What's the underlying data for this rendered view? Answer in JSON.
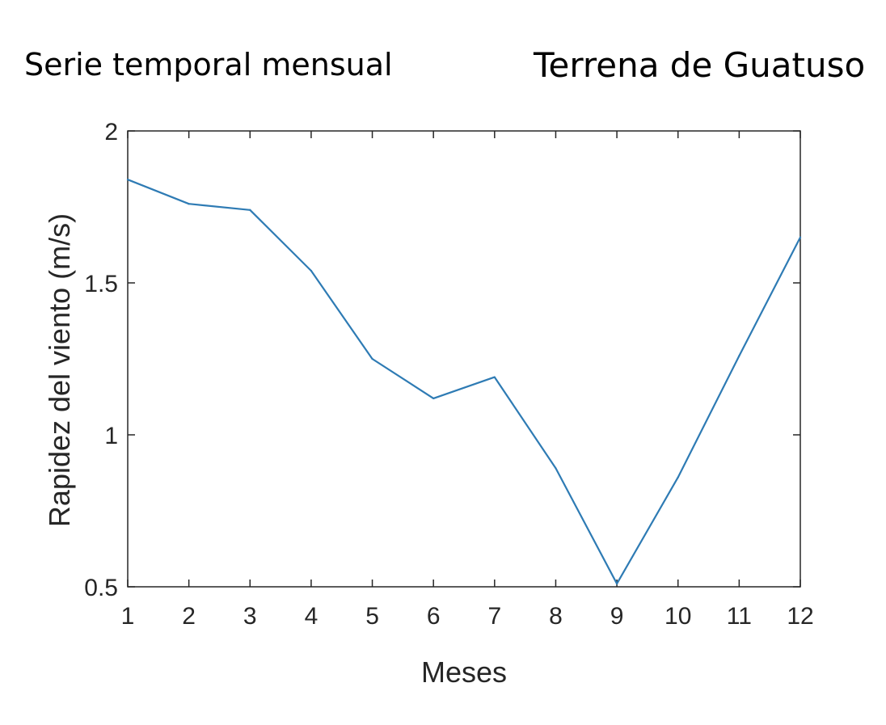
{
  "header": {
    "left_title": "Serie temporal mensual",
    "right_title": "Terrena de Guatuso"
  },
  "colors": {
    "line": "#2e7bb4",
    "axis": "#262626",
    "background": "#ffffff"
  },
  "chart_data": {
    "type": "line",
    "title": "",
    "xlabel": "Meses",
    "ylabel": "Rapidez del viento (m/s)",
    "xlim": [
      1,
      12
    ],
    "ylim": [
      0.5,
      2
    ],
    "xticks": [
      1,
      2,
      3,
      4,
      5,
      6,
      7,
      8,
      9,
      10,
      11,
      12
    ],
    "yticks": [
      0.5,
      1,
      1.5,
      2
    ],
    "ytick_labels": [
      "0.5",
      "1",
      "1.5",
      "2"
    ],
    "grid": false,
    "x": [
      1,
      2,
      3,
      4,
      5,
      6,
      7,
      8,
      9,
      10,
      11,
      12
    ],
    "series": [
      {
        "values": [
          1.84,
          1.76,
          1.74,
          1.54,
          1.25,
          1.12,
          1.19,
          0.89,
          0.51,
          0.86,
          1.26,
          1.65
        ]
      }
    ]
  }
}
